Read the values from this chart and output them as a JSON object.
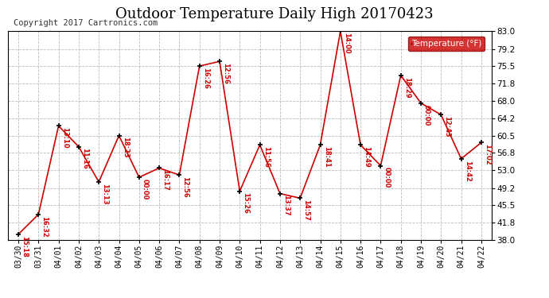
{
  "title": "Outdoor Temperature Daily High 20170423",
  "copyright": "Copyright 2017 Cartronics.com",
  "legend_label": "Temperature (°F)",
  "x_labels": [
    "03/30",
    "03/31",
    "04/01",
    "04/02",
    "04/03",
    "04/04",
    "04/05",
    "04/06",
    "04/07",
    "04/08",
    "04/09",
    "04/10",
    "04/11",
    "04/12",
    "04/13",
    "04/14",
    "04/15",
    "04/16",
    "04/17",
    "04/18",
    "04/19",
    "04/20",
    "04/21",
    "04/22"
  ],
  "y_values": [
    39.2,
    43.5,
    62.6,
    58.1,
    50.5,
    60.5,
    51.5,
    53.5,
    52.0,
    75.5,
    76.5,
    48.5,
    58.5,
    48.0,
    47.0,
    58.5,
    83.0,
    58.5,
    54.0,
    73.5,
    67.5,
    65.0,
    55.5,
    59.0
  ],
  "time_labels": [
    "15:18",
    "16:32",
    "13:10",
    "11:16",
    "13:13",
    "18:23",
    "00:00",
    "16:17",
    "12:56",
    "16:26",
    "12:56",
    "15:26",
    "11:56",
    "13:37",
    "14:57",
    "18:41",
    "14:00",
    "14:49",
    "00:00",
    "18:29",
    "00:00",
    "12:43",
    "14:42",
    "17:02"
  ],
  "yticks": [
    38.0,
    41.8,
    45.5,
    49.2,
    53.0,
    56.8,
    60.5,
    64.2,
    68.0,
    71.8,
    75.5,
    79.2,
    83.0
  ],
  "line_color": "#cc0000",
  "marker_color": "#000000",
  "label_color": "#cc0000",
  "bg_color": "#ffffff",
  "grid_color": "#bbbbbb",
  "title_fontsize": 13,
  "copyright_fontsize": 7.5,
  "legend_bg": "#cc0000",
  "legend_text_color": "#ffffff"
}
